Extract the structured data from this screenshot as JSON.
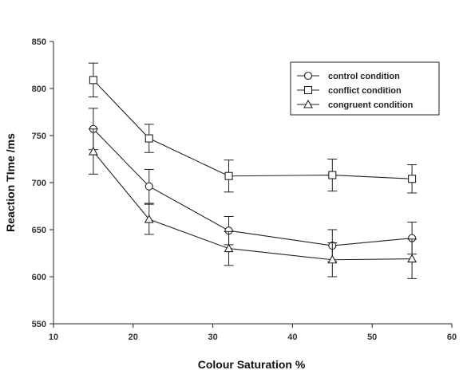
{
  "chart_data": {
    "type": "line",
    "xlabel": "Colour Saturation %",
    "ylabel": "Reaction TIme /ms",
    "xlim": [
      10,
      60
    ],
    "ylim": [
      550,
      850
    ],
    "xticks": [
      "10",
      "20",
      "30",
      "40",
      "50",
      "60"
    ],
    "yticks": [
      "550",
      "600",
      "650",
      "700",
      "750",
      "800",
      "850"
    ],
    "x": [
      15,
      22,
      32,
      45,
      55
    ],
    "grid": false,
    "legend_position": "top-right",
    "series": [
      {
        "name": "control condition",
        "marker": "circle",
        "values": [
          757,
          696,
          649,
          633,
          641
        ],
        "error": [
          22,
          18,
          15,
          17,
          17
        ]
      },
      {
        "name": "conflict condition",
        "marker": "square",
        "values": [
          809,
          747,
          707,
          708,
          704
        ],
        "error": [
          18,
          15,
          17,
          17,
          15
        ]
      },
      {
        "name": "congruent condition",
        "marker": "triangle",
        "values": [
          733,
          661,
          630,
          618,
          619
        ],
        "error": [
          24,
          16,
          18,
          18,
          21
        ]
      }
    ]
  }
}
